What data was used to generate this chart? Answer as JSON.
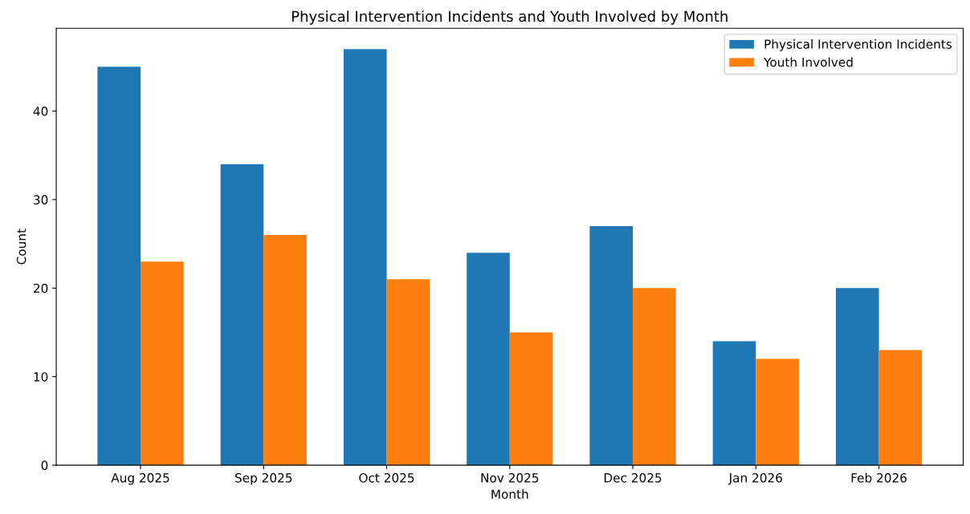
{
  "chart_data": {
    "type": "bar",
    "title": "Physical Intervention Incidents and Youth Involved by Month",
    "xlabel": "Month",
    "ylabel": "Count",
    "categories": [
      "Aug 2025",
      "Sep 2025",
      "Oct 2025",
      "Nov 2025",
      "Dec 2025",
      "Jan 2026",
      "Feb 2026"
    ],
    "series": [
      {
        "name": "Physical Intervention Incidents",
        "color": "#1f77b4",
        "values": [
          45,
          34,
          47,
          24,
          27,
          14,
          20
        ]
      },
      {
        "name": "Youth Involved",
        "color": "#ff7f0e",
        "values": [
          23,
          26,
          21,
          15,
          20,
          12,
          13
        ]
      }
    ],
    "ylim": [
      0,
      49.35
    ],
    "yticks": [
      0,
      10,
      20,
      30,
      40
    ],
    "grid": false,
    "legend": "top right"
  }
}
